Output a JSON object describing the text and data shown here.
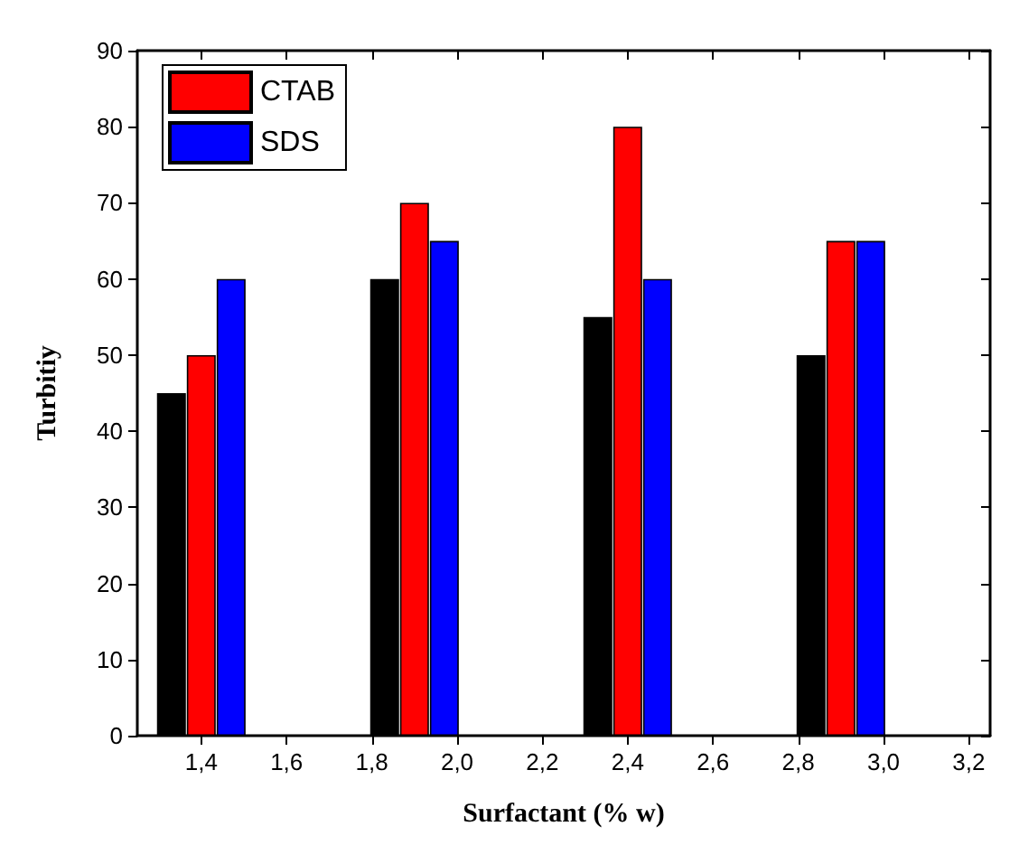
{
  "chart_data": {
    "type": "bar",
    "xlabel": "Surfactant (% w)",
    "ylabel": "Turbitiy",
    "series": [
      {
        "color": "#000000",
        "x": [
          1.33,
          1.83,
          2.33,
          2.83
        ],
        "values": [
          45,
          60,
          55,
          50
        ]
      },
      {
        "name": "CTAB",
        "color": "#ff0000",
        "x": [
          1.4,
          1.9,
          2.4,
          2.9
        ],
        "values": [
          50,
          70,
          80,
          65
        ]
      },
      {
        "name": "SDS",
        "color": "#0000ff",
        "x": [
          1.47,
          1.97,
          2.47,
          2.97
        ],
        "values": [
          60,
          65,
          60,
          65
        ]
      }
    ],
    "xlim": [
      1.25,
      3.25
    ],
    "xticks": [
      {
        "value": 1.4,
        "label": "1,4"
      },
      {
        "value": 1.6,
        "label": "1,6"
      },
      {
        "value": 1.8,
        "label": "1,8"
      },
      {
        "value": 2.0,
        "label": "2,0"
      },
      {
        "value": 2.2,
        "label": "2,2"
      },
      {
        "value": 2.4,
        "label": "2,4"
      },
      {
        "value": 2.6,
        "label": "2,6"
      },
      {
        "value": 2.8,
        "label": "2,8"
      },
      {
        "value": 3.0,
        "label": "3,0"
      },
      {
        "value": 3.2,
        "label": "3,2"
      }
    ],
    "ylim": [
      0,
      90
    ],
    "yticks": [
      0,
      10,
      20,
      30,
      40,
      50,
      60,
      70,
      80,
      90
    ],
    "grid": false,
    "legend": "top left"
  }
}
